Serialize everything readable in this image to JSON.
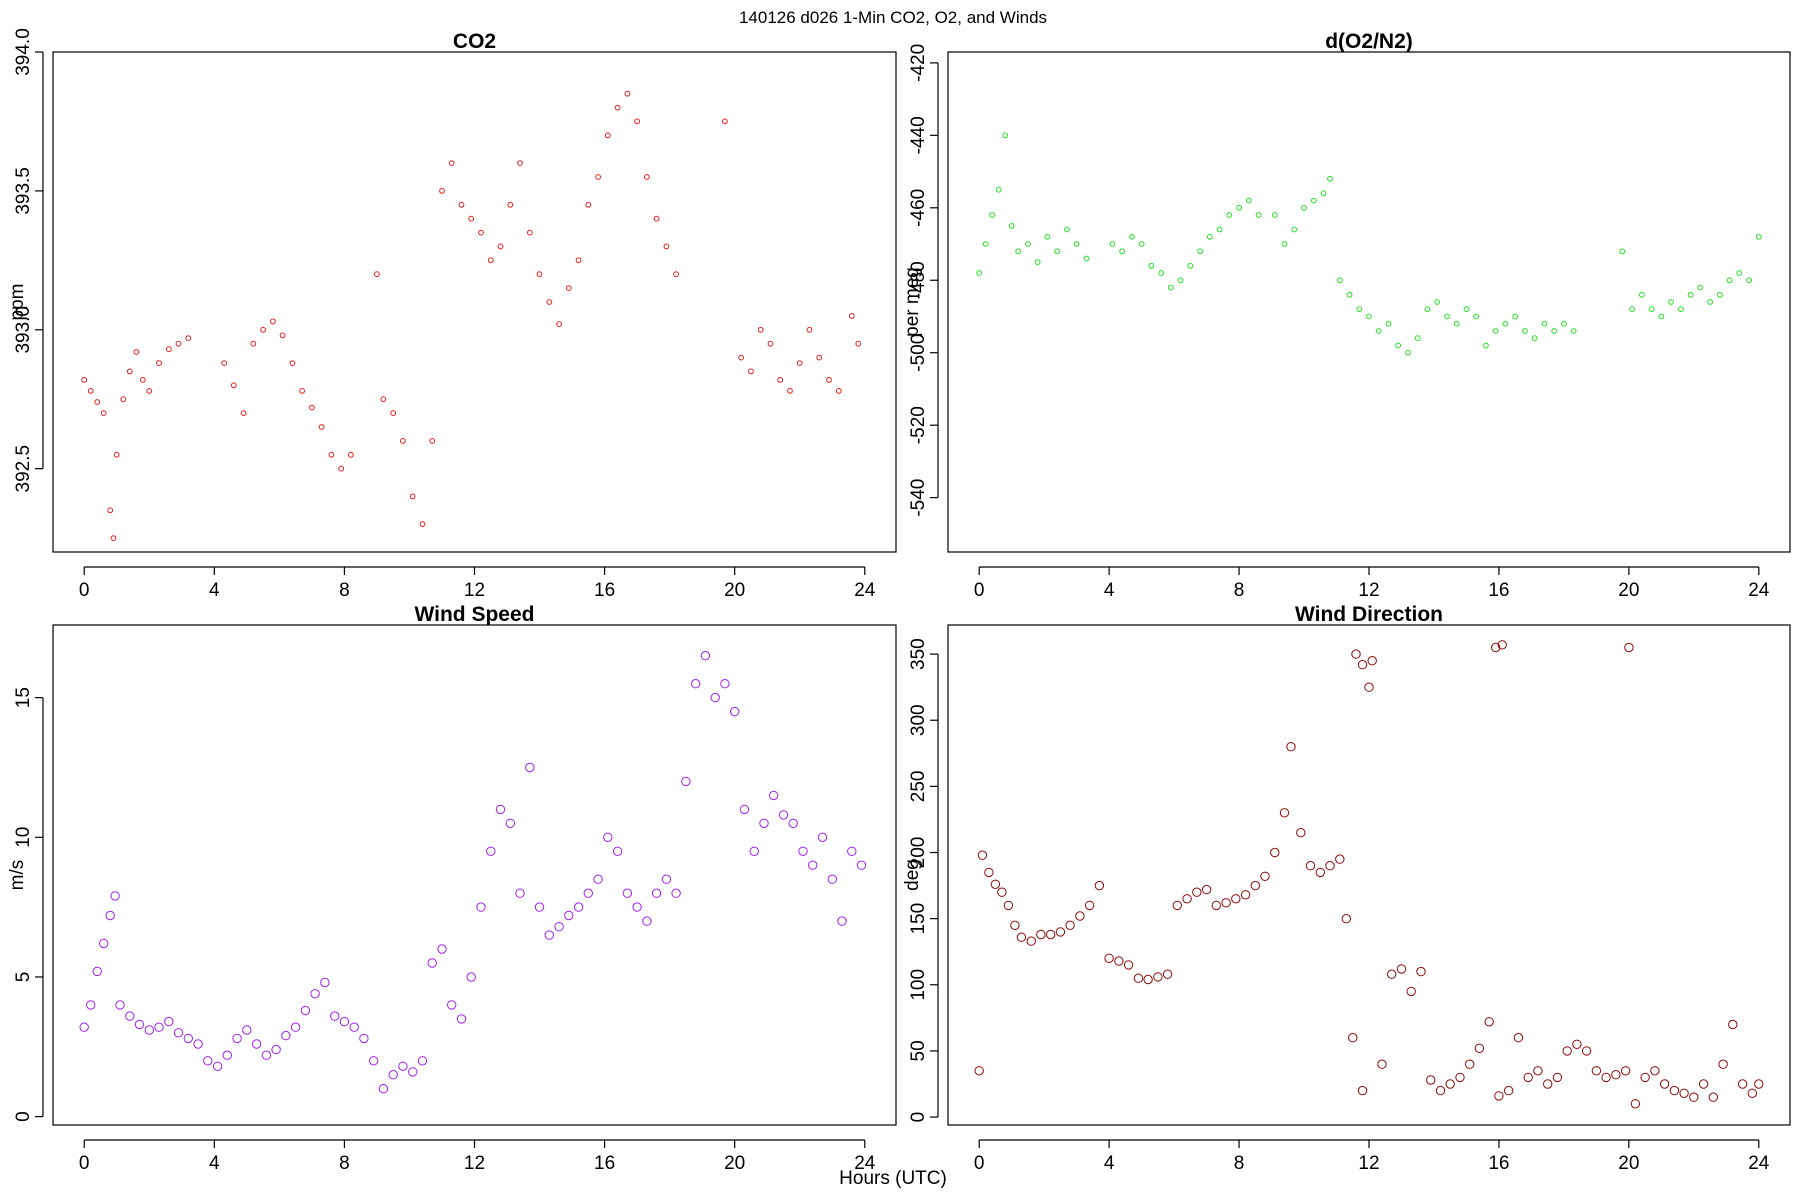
{
  "figure": {
    "title": "140126   d026   1-Min CO2, O2, and Winds",
    "xlabel": "Hours (UTC)"
  },
  "chart_data": [
    {
      "type": "scatter",
      "title": "CO2",
      "xlabel": "Hours (UTC)",
      "ylabel": "ppm",
      "xlim": [
        -0.96,
        24.96
      ],
      "ylim": [
        392.2,
        394.0
      ],
      "xticks": [
        0,
        4,
        8,
        12,
        16,
        20,
        24
      ],
      "xtick_labels": [
        "0",
        "4",
        "8",
        "12",
        "16",
        "20",
        "24"
      ],
      "yticks": [
        392.5,
        393.0,
        393.5,
        394.0
      ],
      "ytick_labels": [
        "392.5",
        "393.0",
        "393.5",
        "394.0"
      ],
      "ytick_rotated": true,
      "grid": false,
      "marker": "open-circle-small",
      "color": "#e8201e",
      "series": [
        {
          "x": [
            0,
            0.2,
            0.4,
            0.6,
            0.8,
            0.9,
            1.0,
            1.2,
            1.4,
            1.6,
            1.8,
            2.0,
            2.3,
            2.6,
            2.9,
            3.2,
            4.3,
            4.6,
            4.9,
            5.2,
            5.5,
            5.8,
            6.1,
            6.4,
            6.7,
            7.0,
            7.3,
            7.6,
            7.9,
            8.2,
            9.0,
            9.2,
            9.5,
            9.8,
            10.1,
            10.4,
            10.7,
            11.0,
            11.3,
            11.6,
            11.9,
            12.2,
            12.5,
            12.8,
            13.1,
            13.4,
            13.7,
            14.0,
            14.3,
            14.6,
            14.9,
            15.2,
            15.5,
            15.8,
            16.1,
            16.4,
            16.7,
            17.0,
            17.3,
            17.6,
            17.9,
            18.2,
            19.7,
            20.2,
            20.5,
            20.8,
            21.1,
            21.4,
            21.7,
            22.0,
            22.3,
            22.6,
            22.9,
            23.2,
            23.6,
            23.8
          ],
          "y": [
            392.82,
            392.78,
            392.74,
            392.7,
            392.35,
            392.25,
            392.55,
            392.75,
            392.85,
            392.92,
            392.82,
            392.78,
            392.88,
            392.93,
            392.95,
            392.97,
            392.88,
            392.8,
            392.7,
            392.95,
            393.0,
            393.03,
            392.98,
            392.88,
            392.78,
            392.72,
            392.65,
            392.55,
            392.5,
            392.55,
            393.2,
            392.75,
            392.7,
            392.6,
            392.4,
            392.3,
            392.6,
            393.5,
            393.6,
            393.45,
            393.4,
            393.35,
            393.25,
            393.3,
            393.45,
            393.6,
            393.35,
            393.2,
            393.1,
            393.02,
            393.15,
            393.25,
            393.45,
            393.55,
            393.7,
            393.8,
            393.85,
            393.75,
            393.55,
            393.4,
            393.3,
            393.2,
            393.75,
            392.9,
            392.85,
            393.0,
            392.95,
            392.82,
            392.78,
            392.88,
            393.0,
            392.9,
            392.82,
            392.78,
            393.05,
            392.95
          ]
        }
      ]
    },
    {
      "type": "scatter",
      "title": "d(O2/N2)",
      "xlabel": "Hours (UTC)",
      "ylabel": "per meg",
      "xlim": [
        -0.96,
        24.96
      ],
      "ylim": [
        -555,
        -417
      ],
      "xticks": [
        0,
        4,
        8,
        12,
        16,
        20,
        24
      ],
      "xtick_labels": [
        "0",
        "4",
        "8",
        "12",
        "16",
        "20",
        "24"
      ],
      "yticks": [
        -540,
        -520,
        -500,
        -480,
        -460,
        -440,
        -420
      ],
      "ytick_labels": [
        "-540",
        "-520",
        "-500",
        "-480",
        "-460",
        "-440",
        "-420"
      ],
      "ytick_rotated": true,
      "grid": false,
      "marker": "open-circle-small",
      "color": "#22e022",
      "series": [
        {
          "x": [
            0,
            0.2,
            0.4,
            0.6,
            0.8,
            1.0,
            1.2,
            1.5,
            1.8,
            2.1,
            2.4,
            2.7,
            3.0,
            3.3,
            4.1,
            4.4,
            4.7,
            5.0,
            5.3,
            5.6,
            5.9,
            6.2,
            6.5,
            6.8,
            7.1,
            7.4,
            7.7,
            8.0,
            8.3,
            8.6,
            9.1,
            9.4,
            9.7,
            10.0,
            10.3,
            10.6,
            10.8,
            11.1,
            11.4,
            11.7,
            12.0,
            12.3,
            12.6,
            12.9,
            13.2,
            13.5,
            13.8,
            14.1,
            14.4,
            14.7,
            15.0,
            15.3,
            15.6,
            15.9,
            16.2,
            16.5,
            16.8,
            17.1,
            17.4,
            17.7,
            18.0,
            18.3,
            19.8,
            20.1,
            20.4,
            20.7,
            21.0,
            21.3,
            21.6,
            21.9,
            22.2,
            22.5,
            22.8,
            23.1,
            23.4,
            23.7,
            24.0
          ],
          "y": [
            -478,
            -470,
            -462,
            -455,
            -440,
            -465,
            -472,
            -470,
            -475,
            -468,
            -472,
            -466,
            -470,
            -474,
            -470,
            -472,
            -468,
            -470,
            -476,
            -478,
            -482,
            -480,
            -476,
            -472,
            -468,
            -466,
            -462,
            -460,
            -458,
            -462,
            -462,
            -470,
            -466,
            -460,
            -458,
            -456,
            -452,
            -480,
            -484,
            -488,
            -490,
            -494,
            -492,
            -498,
            -500,
            -496,
            -488,
            -486,
            -490,
            -492,
            -488,
            -490,
            -498,
            -494,
            -492,
            -490,
            -494,
            -496,
            -492,
            -494,
            -492,
            -494,
            -472,
            -488,
            -484,
            -488,
            -490,
            -486,
            -488,
            -484,
            -482,
            -486,
            -484,
            -480,
            -478,
            -480,
            -468
          ]
        }
      ]
    },
    {
      "type": "scatter",
      "title": "Wind Speed",
      "xlabel": "Hours (UTC)",
      "ylabel": "m/s",
      "xlim": [
        -0.96,
        24.96
      ],
      "ylim": [
        -0.3,
        17.6
      ],
      "xticks": [
        0,
        4,
        8,
        12,
        16,
        20,
        24
      ],
      "xtick_labels": [
        "0",
        "4",
        "8",
        "12",
        "16",
        "20",
        "24"
      ],
      "yticks": [
        0,
        5,
        10,
        15
      ],
      "ytick_labels": [
        "0",
        "5",
        "10",
        "15"
      ],
      "ytick_rotated": true,
      "grid": false,
      "marker": "open-circle",
      "color": "#a020f0",
      "series": [
        {
          "x": [
            0,
            0.2,
            0.4,
            0.6,
            0.8,
            0.95,
            1.1,
            1.4,
            1.7,
            2.0,
            2.3,
            2.6,
            2.9,
            3.2,
            3.5,
            3.8,
            4.1,
            4.4,
            4.7,
            5.0,
            5.3,
            5.6,
            5.9,
            6.2,
            6.5,
            6.8,
            7.1,
            7.4,
            7.7,
            8.0,
            8.3,
            8.6,
            8.9,
            9.2,
            9.5,
            9.8,
            10.1,
            10.4,
            10.7,
            11.0,
            11.3,
            11.6,
            11.9,
            12.2,
            12.5,
            12.8,
            13.1,
            13.4,
            13.7,
            14.0,
            14.3,
            14.6,
            14.9,
            15.2,
            15.5,
            15.8,
            16.1,
            16.4,
            16.7,
            17.0,
            17.3,
            17.6,
            17.9,
            18.2,
            18.5,
            18.8,
            19.1,
            19.4,
            19.7,
            20.0,
            20.3,
            20.6,
            20.9,
            21.2,
            21.5,
            21.8,
            22.1,
            22.4,
            22.7,
            23.0,
            23.3,
            23.6,
            23.9
          ],
          "y": [
            3.2,
            4.0,
            5.2,
            6.2,
            7.2,
            7.9,
            4.0,
            3.6,
            3.3,
            3.1,
            3.2,
            3.4,
            3.0,
            2.8,
            2.6,
            2.0,
            1.8,
            2.2,
            2.8,
            3.1,
            2.6,
            2.2,
            2.4,
            2.9,
            3.2,
            3.8,
            4.4,
            4.8,
            3.6,
            3.4,
            3.2,
            2.8,
            2.0,
            1.0,
            1.5,
            1.8,
            1.6,
            2.0,
            5.5,
            6.0,
            4.0,
            3.5,
            5.0,
            7.5,
            9.5,
            11.0,
            10.5,
            8.0,
            12.5,
            7.5,
            6.5,
            6.8,
            7.2,
            7.5,
            8.0,
            8.5,
            10.0,
            9.5,
            8.0,
            7.5,
            7.0,
            8.0,
            8.5,
            8.0,
            12.0,
            15.5,
            16.5,
            15.0,
            15.5,
            14.5,
            11.0,
            9.5,
            10.5,
            11.5,
            10.8,
            10.5,
            9.5,
            9.0,
            10.0,
            8.5,
            7.0,
            9.5,
            9.0
          ]
        }
      ]
    },
    {
      "type": "scatter",
      "title": "Wind Direction",
      "xlabel": "Hours (UTC)",
      "ylabel": "deg",
      "xlim": [
        -0.96,
        24.96
      ],
      "ylim": [
        -6,
        372
      ],
      "xticks": [
        0,
        4,
        8,
        12,
        16,
        20,
        24
      ],
      "xtick_labels": [
        "0",
        "4",
        "8",
        "12",
        "16",
        "20",
        "24"
      ],
      "yticks": [
        0,
        50,
        100,
        150,
        200,
        250,
        300,
        350
      ],
      "ytick_labels": [
        "0",
        "50",
        "100",
        "150",
        "200",
        "250",
        "300",
        "350"
      ],
      "ytick_rotated": true,
      "grid": false,
      "marker": "open-circle",
      "color": "#8b0a0a",
      "series": [
        {
          "x": [
            0,
            0.1,
            0.3,
            0.5,
            0.7,
            0.9,
            1.1,
            1.3,
            1.6,
            1.9,
            2.2,
            2.5,
            2.8,
            3.1,
            3.4,
            3.7,
            4.0,
            4.3,
            4.6,
            4.9,
            5.2,
            5.5,
            5.8,
            6.1,
            6.4,
            6.7,
            7.0,
            7.3,
            7.6,
            7.9,
            8.2,
            8.5,
            8.8,
            9.1,
            9.4,
            9.6,
            9.9,
            10.2,
            10.5,
            10.8,
            11.1,
            11.3,
            11.5,
            11.8,
            12.1,
            12.4,
            12.7,
            13.0,
            13.3,
            13.6,
            13.9,
            14.2,
            14.5,
            14.8,
            15.1,
            15.4,
            15.7,
            16.0,
            16.3,
            16.6,
            16.9,
            17.2,
            17.5,
            17.8,
            18.1,
            18.4,
            18.7,
            19.0,
            19.3,
            19.6,
            19.9,
            20.2,
            20.5,
            20.8,
            21.1,
            21.4,
            21.7,
            22.0,
            22.3,
            22.6,
            22.9,
            23.2,
            23.5,
            23.8,
            24.0
          ],
          "y": [
            35,
            198,
            185,
            176,
            170,
            160,
            145,
            136,
            133,
            138,
            138,
            140,
            145,
            152,
            160,
            175,
            120,
            118,
            115,
            105,
            104,
            106,
            108,
            160,
            165,
            170,
            172,
            160,
            162,
            165,
            168,
            175,
            182,
            200,
            230,
            280,
            215,
            190,
            185,
            190,
            195,
            150,
            60,
            20,
            345,
            40,
            108,
            112,
            95,
            110,
            28,
            20,
            25,
            30,
            40,
            52,
            72,
            16,
            20,
            60,
            30,
            35,
            25,
            30,
            50,
            55,
            50,
            35,
            30,
            32,
            35,
            10,
            30,
            35,
            25,
            20,
            18,
            15,
            25,
            15,
            40,
            70,
            25,
            18,
            25
          ]
        },
        {
          "x": [
            11.6,
            11.8,
            12.0,
            15.9,
            16.1,
            20.0
          ],
          "y": [
            350,
            342,
            325,
            355,
            357,
            355
          ]
        }
      ]
    }
  ]
}
